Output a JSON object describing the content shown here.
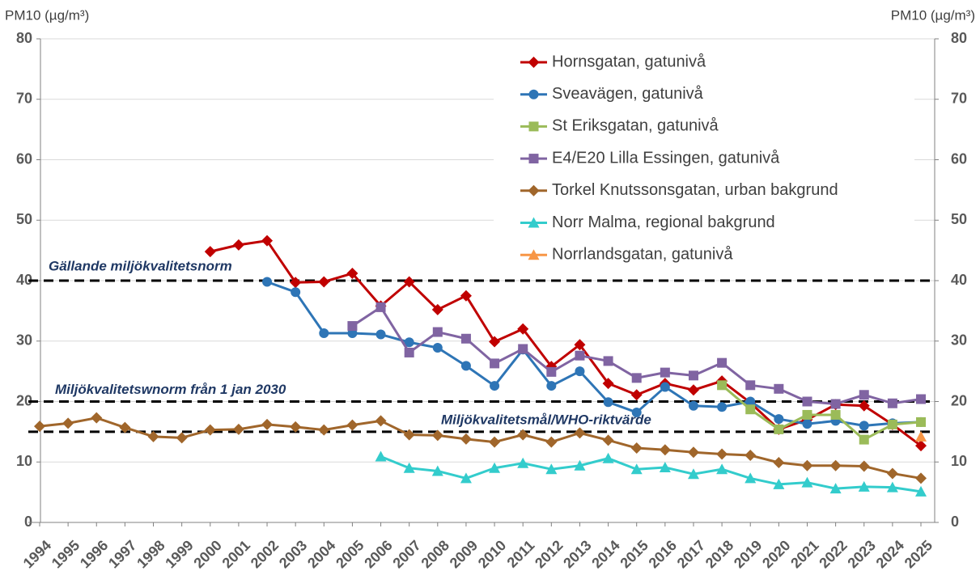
{
  "chart_data": {
    "type": "line",
    "y_label": "PM10 (µg/m³)",
    "y2_label": "PM10 (µg/m³)",
    "categories": [
      "1994",
      "1995",
      "1996",
      "1997",
      "1998",
      "1999",
      "2000",
      "2001",
      "2002",
      "2003",
      "2004",
      "2005",
      "2006",
      "2007",
      "2008",
      "2009",
      "2010",
      "2011",
      "2012",
      "2013",
      "2014",
      "2015",
      "2016",
      "2017",
      "2018",
      "2019",
      "2020",
      "2021",
      "2022",
      "2023",
      "2024",
      "2025"
    ],
    "ylim": [
      0,
      80
    ],
    "yticks": [
      0,
      10,
      20,
      30,
      40,
      50,
      60,
      70,
      80
    ],
    "y2lim": [
      0,
      80
    ],
    "y2ticks": [
      0,
      10,
      20,
      30,
      40,
      50,
      60,
      70,
      80
    ],
    "grid": true,
    "reference_lines": [
      {
        "value": 40,
        "label": "Gällande miljökvalitetsnorm"
      },
      {
        "value": 20,
        "label": "Miljökvalitetswnorm från 1 jan 2030"
      },
      {
        "value": 15,
        "label": "Miljökvalitetsmål/WHO-riktvärde"
      }
    ],
    "series": [
      {
        "name": "Hornsgatan, gatunivå",
        "color": "#c00000",
        "marker": "diamond",
        "values": [
          null,
          null,
          null,
          null,
          null,
          null,
          44.8,
          45.9,
          46.6,
          39.7,
          39.8,
          41.2,
          35.8,
          39.8,
          35.2,
          37.5,
          29.9,
          32,
          25.8,
          29.4,
          23,
          21.1,
          23,
          21.9,
          23.4,
          19.8,
          15.4,
          17,
          19.5,
          19.3,
          16.2,
          12.7
        ]
      },
      {
        "name": "Sveavägen, gatunivå",
        "color": "#2e75b6",
        "marker": "circle",
        "values": [
          null,
          null,
          null,
          null,
          null,
          null,
          null,
          null,
          39.8,
          38.1,
          31.3,
          31.3,
          31.1,
          29.8,
          28.9,
          25.9,
          22.6,
          28.6,
          22.6,
          25,
          19.9,
          18.2,
          22.4,
          19.3,
          19.1,
          20,
          17.1,
          16.3,
          16.8,
          16,
          16.4,
          16.6
        ]
      },
      {
        "name": "St Eriksgatan, gatunivå",
        "color": "#9bbb59",
        "marker": "square",
        "values": [
          null,
          null,
          null,
          null,
          null,
          null,
          null,
          null,
          null,
          null,
          null,
          null,
          null,
          null,
          null,
          null,
          null,
          null,
          null,
          null,
          null,
          null,
          null,
          null,
          22.7,
          18.7,
          15.4,
          17.8,
          17.8,
          13.7,
          16.2,
          16.6
        ]
      },
      {
        "name": "E4/E20 Lilla Essingen, gatunivå",
        "color": "#8064a2",
        "marker": "square",
        "values": [
          null,
          null,
          null,
          null,
          null,
          null,
          null,
          null,
          null,
          null,
          null,
          32.5,
          35.6,
          28.1,
          31.5,
          30.4,
          26.3,
          28.7,
          24.9,
          27.6,
          26.7,
          23.9,
          24.8,
          24.3,
          26.4,
          22.7,
          22.1,
          20,
          19.6,
          21.1,
          19.7,
          20.4
        ]
      },
      {
        "name": "Torkel Knutssonsgatan, urban bakgrund",
        "color": "#a0662b",
        "marker": "diamond",
        "values": [
          15.9,
          16.4,
          17.3,
          15.7,
          14.2,
          14,
          15.3,
          15.4,
          16.2,
          15.8,
          15.3,
          16.1,
          16.8,
          14.5,
          14.4,
          13.8,
          13.3,
          14.5,
          13.3,
          14.8,
          13.6,
          12.3,
          12,
          11.6,
          11.3,
          11.1,
          9.9,
          9.4,
          9.4,
          9.3,
          8.1,
          7.3
        ]
      },
      {
        "name": "Norr Malma, regional bakgrund",
        "color": "#33cccc",
        "marker": "triangle",
        "values": [
          null,
          null,
          null,
          null,
          null,
          null,
          null,
          null,
          null,
          null,
          null,
          null,
          10.9,
          9,
          8.5,
          7.3,
          9,
          9.8,
          8.8,
          9.4,
          10.6,
          8.8,
          9.1,
          8,
          8.8,
          7.3,
          6.3,
          6.6,
          5.6,
          5.9,
          5.8,
          5.1
        ]
      },
      {
        "name": "Norrlandsgatan, gatunivå",
        "color": "#f79646",
        "marker": "triangle",
        "values": [
          null,
          null,
          null,
          null,
          null,
          null,
          null,
          null,
          null,
          null,
          null,
          null,
          null,
          null,
          null,
          null,
          null,
          null,
          null,
          null,
          null,
          null,
          null,
          null,
          null,
          null,
          null,
          null,
          null,
          null,
          null,
          14.2
        ]
      }
    ]
  }
}
